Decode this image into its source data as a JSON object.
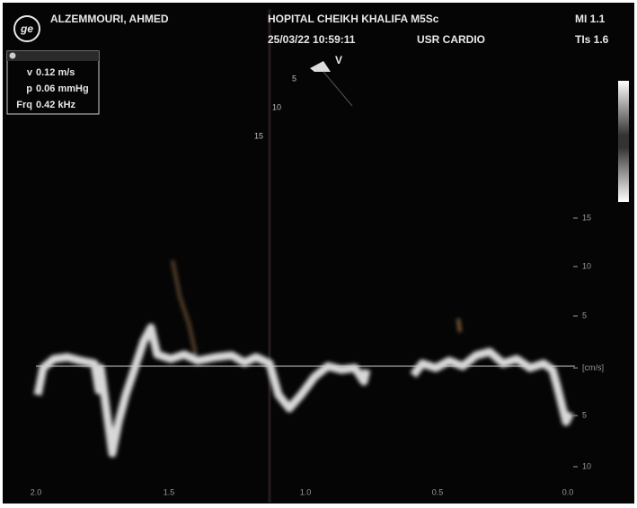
{
  "header": {
    "patient": "ALZEMMOURI, AHMED",
    "hospital": "HOPITAL CHEIKH KHALIFA M5Sc",
    "datetime": "25/03/22 10:59:11",
    "preset": "USR CARDIO",
    "mi": "MI 1.1",
    "tis": "TIs 1.6"
  },
  "measurements": [
    {
      "label": "v",
      "value": "0.12 m/s"
    },
    {
      "label": "p",
      "value": "0.06 mmHg"
    },
    {
      "label": "Frq",
      "value": "0.42 kHz"
    }
  ],
  "depth_markers": [
    "V",
    "5",
    "10",
    "15"
  ],
  "velocity_scale": [
    "15",
    "10",
    "5",
    "[cm/s]",
    "5",
    "10"
  ],
  "time_axis": [
    "2.0",
    "1.5",
    "1.0",
    "0.5",
    "0.0"
  ]
}
